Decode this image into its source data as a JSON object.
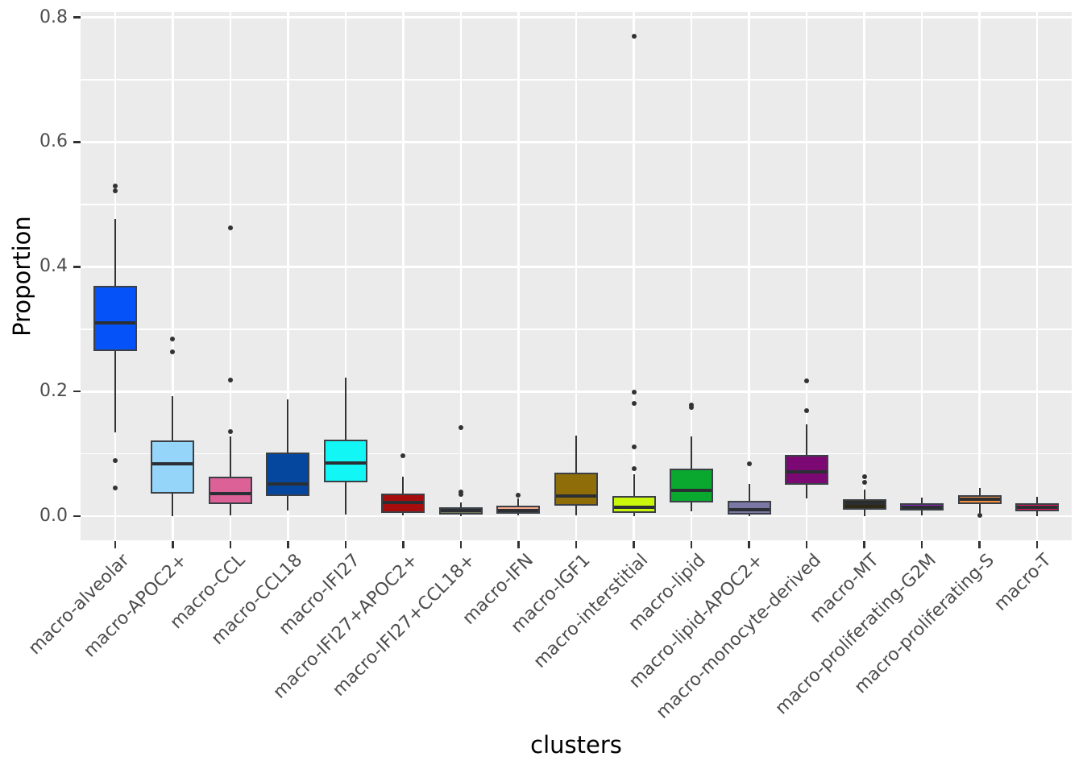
{
  "chart_data": {
    "type": "boxplot",
    "title": "",
    "xlabel": "clusters",
    "ylabel": "Proportion",
    "ylim": [
      -0.0385,
      0.8085
    ],
    "y_major_ticks": [
      0.0,
      0.2,
      0.4,
      0.6,
      0.8
    ],
    "y_major_labels": [
      "0.0",
      "0.2",
      "0.4",
      "0.6",
      "0.8"
    ],
    "y_minor_ticks": [
      0.1,
      0.3,
      0.5,
      0.7
    ],
    "grid": "on",
    "legend": "none",
    "panel_background": "#ebebeb",
    "grid_color": "#ffffff",
    "box_border_color": "#3a4046",
    "tick_label_color": "#4d4d4d",
    "axis_title_color": "#000000",
    "categories": [
      {
        "label": "macro-alveolar",
        "color": "#0452f8",
        "whislo": 0.134,
        "q1": 0.265,
        "med": 0.31,
        "q3": 0.369,
        "whishi": 0.477,
        "outliers": [
          0.53,
          0.522,
          0.089,
          0.045
        ]
      },
      {
        "label": "macro-APOC2+",
        "color": "#96d5fa",
        "whislo": 0.0,
        "q1": 0.036,
        "med": 0.084,
        "q3": 0.122,
        "whishi": 0.192,
        "outliers": [
          0.284,
          0.263
        ]
      },
      {
        "label": "macro-CCL",
        "color": "#db6197",
        "whislo": 0.001,
        "q1": 0.019,
        "med": 0.037,
        "q3": 0.063,
        "whishi": 0.128,
        "outliers": [
          0.462,
          0.219,
          0.136
        ]
      },
      {
        "label": "macro-CCL18",
        "color": "#05479e",
        "whislo": 0.009,
        "q1": 0.032,
        "med": 0.052,
        "q3": 0.102,
        "whishi": 0.187,
        "outliers": []
      },
      {
        "label": "macro-IFI27",
        "color": "#12f6f6",
        "whislo": 0.003,
        "q1": 0.055,
        "med": 0.085,
        "q3": 0.123,
        "whishi": 0.222,
        "outliers": []
      },
      {
        "label": "macro-IFI27+APOC2+",
        "color": "#a60d0d",
        "whislo": 0.002,
        "q1": 0.005,
        "med": 0.022,
        "q3": 0.037,
        "whishi": 0.063,
        "outliers": [
          0.097
        ]
      },
      {
        "label": "macro-IFI27+CCL18+",
        "color": "#6f7557",
        "whislo": 0.0,
        "q1": 0.003,
        "med": 0.009,
        "q3": 0.015,
        "whishi": 0.022,
        "outliers": [
          0.142,
          0.039,
          0.035
        ]
      },
      {
        "label": "macro-IFN",
        "color": "#f8a98b",
        "whislo": 0.001,
        "q1": 0.004,
        "med": 0.009,
        "q3": 0.017,
        "whishi": 0.028,
        "outliers": [
          0.034
        ]
      },
      {
        "label": "macro-IGF1",
        "color": "#8f6d08",
        "whislo": 0.001,
        "q1": 0.017,
        "med": 0.032,
        "q3": 0.07,
        "whishi": 0.129,
        "outliers": []
      },
      {
        "label": "macro-interstitial",
        "color": "#c9f60b",
        "whislo": 0.0,
        "q1": 0.005,
        "med": 0.015,
        "q3": 0.032,
        "whishi": 0.068,
        "outliers": [
          0.77,
          0.199,
          0.181,
          0.111,
          0.076
        ]
      },
      {
        "label": "macro-lipid",
        "color": "#0aa82f",
        "whislo": 0.008,
        "q1": 0.022,
        "med": 0.041,
        "q3": 0.076,
        "whishi": 0.128,
        "outliers": [
          0.179,
          0.174
        ]
      },
      {
        "label": "macro-lipid-APOC2+",
        "color": "#7c78a5",
        "whislo": 0.0,
        "q1": 0.003,
        "med": 0.01,
        "q3": 0.025,
        "whishi": 0.052,
        "outliers": [
          0.084
        ]
      },
      {
        "label": "macro-monocyte-derived",
        "color": "#7c0873",
        "whislo": 0.028,
        "q1": 0.05,
        "med": 0.071,
        "q3": 0.098,
        "whishi": 0.148,
        "outliers": [
          0.217,
          0.169
        ]
      },
      {
        "label": "macro-MT",
        "color": "#2e2815",
        "whislo": 0.0,
        "q1": 0.01,
        "med": 0.021,
        "q3": 0.027,
        "whishi": 0.043,
        "outliers": [
          0.063,
          0.055
        ]
      },
      {
        "label": "macro-proliferating-G2M",
        "color": "#8b20c2",
        "whislo": 0.001,
        "q1": 0.009,
        "med": 0.015,
        "q3": 0.021,
        "whishi": 0.03,
        "outliers": []
      },
      {
        "label": "macro-proliferating-S",
        "color": "#f28f3e",
        "whislo": 0.005,
        "q1": 0.019,
        "med": 0.027,
        "q3": 0.034,
        "whishi": 0.045,
        "outliers": [
          0.001
        ]
      },
      {
        "label": "macro-T",
        "color": "#e9145b",
        "whislo": 0.0,
        "q1": 0.008,
        "med": 0.014,
        "q3": 0.021,
        "whishi": 0.031,
        "outliers": []
      }
    ]
  }
}
